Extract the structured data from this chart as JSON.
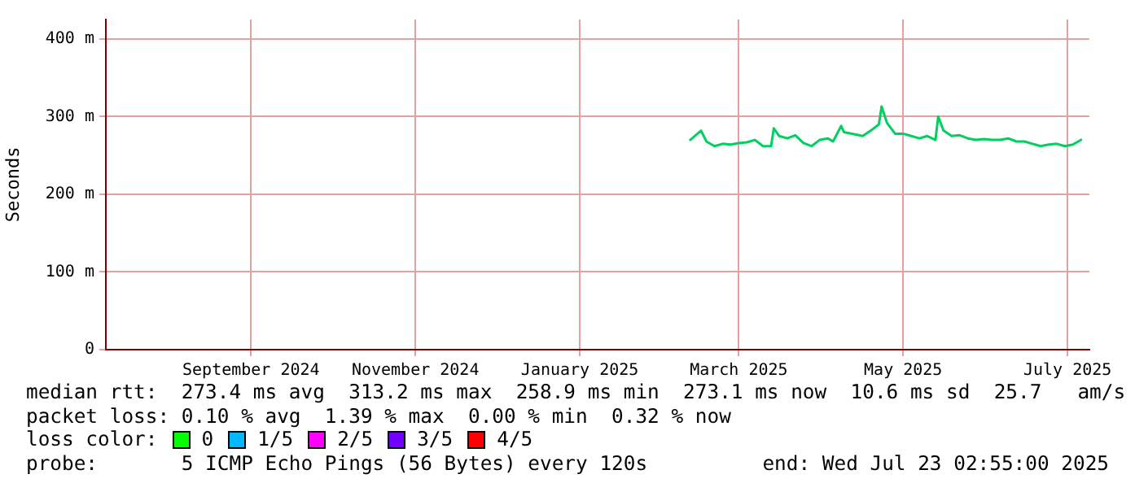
{
  "chart_data": {
    "type": "line",
    "ylabel": "Seconds",
    "x": [
      "2025-02-25",
      "2025-03-01",
      "2025-03-03",
      "2025-03-06",
      "2025-03-09",
      "2025-03-12",
      "2025-03-15",
      "2025-03-18",
      "2025-03-21",
      "2025-03-24",
      "2025-03-27",
      "2025-03-28",
      "2025-03-30",
      "2025-04-02",
      "2025-04-05",
      "2025-04-08",
      "2025-04-11",
      "2025-04-14",
      "2025-04-17",
      "2025-04-19",
      "2025-04-22",
      "2025-04-23",
      "2025-04-26",
      "2025-04-30",
      "2025-05-03",
      "2025-05-06",
      "2025-05-07",
      "2025-05-09",
      "2025-05-12",
      "2025-05-15",
      "2025-05-18",
      "2025-05-21",
      "2025-05-24",
      "2025-05-27",
      "2025-05-28",
      "2025-05-30",
      "2025-06-02",
      "2025-06-05",
      "2025-06-08",
      "2025-06-11",
      "2025-06-14",
      "2025-06-17",
      "2025-06-20",
      "2025-06-23",
      "2025-06-26",
      "2025-06-29",
      "2025-07-02",
      "2025-07-05",
      "2025-07-08",
      "2025-07-11",
      "2025-07-14",
      "2025-07-17",
      "2025-07-20"
    ],
    "series": [
      {
        "color": "#00d060",
        "values": [
          270,
          282,
          268,
          262,
          265,
          264,
          266,
          267,
          270,
          262,
          262,
          285,
          275,
          272,
          276,
          266,
          262,
          270,
          272,
          268,
          288,
          280,
          278,
          275,
          282,
          290,
          313,
          292,
          278,
          278,
          275,
          272,
          275,
          270,
          300,
          282,
          275,
          276,
          272,
          270,
          271,
          270,
          270,
          272,
          268,
          268,
          265,
          262,
          264,
          265,
          262,
          264,
          270
        ]
      }
    ],
    "xlim": [
      "2024-07-23T02:55",
      "2025-07-23T02:55"
    ],
    "xticks": [
      {
        "value": "2024-09-15",
        "label": "September 2024"
      },
      {
        "value": "2024-11-15",
        "label": "November 2024"
      },
      {
        "value": "2025-01-15",
        "label": "January 2025"
      },
      {
        "value": "2025-03-15",
        "label": "March 2025"
      },
      {
        "value": "2025-05-15",
        "label": "May 2025"
      },
      {
        "value": "2025-07-15",
        "label": "July 2025"
      }
    ],
    "ylim": [
      0,
      425
    ],
    "yticks": [
      0,
      {
        "value": 100,
        "label": "100 m"
      },
      {
        "value": 200,
        "label": "200 m"
      },
      {
        "value": 300,
        "label": "300 m"
      },
      {
        "value": 400,
        "label": "400 m"
      }
    ],
    "grid": true,
    "legend": false,
    "marker": "none",
    "line_style": "solid",
    "annotations": [
      "median rtt:  273.4 ms avg  313.2 ms max  258.9 ms min  273.1 ms now  10.6 ms sd  25.7   am/s",
      "packet loss: 0.10 % avg  1.39 % max  0.00 % min  0.32 % now",
      "loss color:",
      "0",
      "1/5",
      "2/5",
      "3/5",
      "4/5",
      "probe:       5 ICMP Echo Pings (56 Bytes) every 120s",
      "end: Wed Jul 23 02:55:00 2025"
    ]
  }
}
